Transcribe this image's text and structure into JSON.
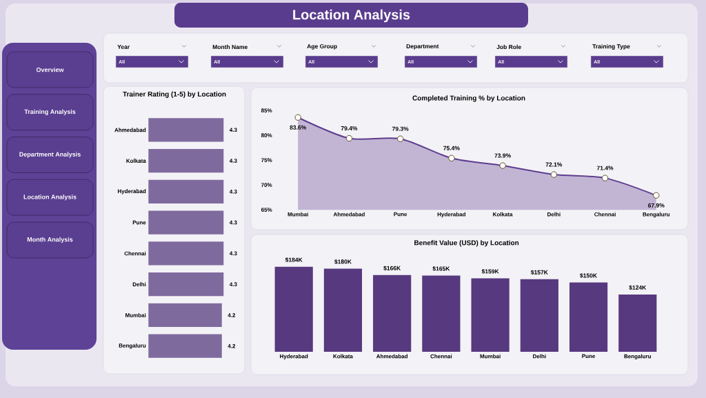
{
  "chart_data": [
    {
      "type": "other",
      "title": "Location Analysis",
      "annotations": [
        "Overview",
        "Training Analysis",
        "Department Analysis",
        "Location Analysis",
        "Month Analysis"
      ]
    },
    {
      "type": "other",
      "categories": [
        "Year",
        "Month Name",
        "Age Group",
        "Department",
        "Job Role",
        "Training Type"
      ],
      "annotations": [
        "All",
        "All",
        "All",
        "All",
        "All",
        "All"
      ]
    },
    {
      "type": "bar",
      "orientation": "horizontal",
      "title": "Trainer Rating (1-5) by Location",
      "categories": [
        "Ahmedabad",
        "Kolkata",
        "Hyderabad",
        "Pune",
        "Chennai",
        "Delhi",
        "Mumbai",
        "Bengaluru"
      ],
      "values": [
        4.3,
        4.3,
        4.3,
        4.3,
        4.3,
        4.3,
        4.2,
        4.2
      ],
      "color": "#7f6a9e",
      "data_labels": true
    },
    {
      "type": "area",
      "title": "Completed Training % by Location",
      "categories": [
        "Mumbai",
        "Ahmedabad",
        "Pune",
        "Hyderabad",
        "Kolkata",
        "Delhi",
        "Chennai",
        "Bengaluru"
      ],
      "values": [
        83.6,
        79.4,
        79.3,
        75.4,
        73.9,
        72.1,
        71.4,
        67.9
      ],
      "color": "#5e3d8f",
      "value_labels": [
        "83.6%",
        "79.4%",
        "79.3%",
        "75.4%",
        "73.9%",
        "72.1%",
        "71.4%",
        "67.9%"
      ],
      "ylim": [
        65,
        85
      ],
      "yticks": [
        {
          "value": 65,
          "label": "65%"
        },
        {
          "value": 70,
          "label": "70%"
        },
        {
          "value": 75,
          "label": "75%"
        },
        {
          "value": 80,
          "label": "80%"
        },
        {
          "value": 85,
          "label": "85%"
        }
      ],
      "marker": "circle"
    },
    {
      "type": "bar",
      "title": "Benefit Value (USD) by Location",
      "categories": [
        "Hyderabad",
        "Kolkata",
        "Ahmedabad",
        "Chennai",
        "Mumbai",
        "Delhi",
        "Pune",
        "Bengaluru"
      ],
      "values": [
        184,
        180,
        166,
        165,
        159,
        157,
        150,
        124
      ],
      "color": "#57397f",
      "value_labels": [
        "$184K",
        "$180K",
        "$166K",
        "$165K",
        "$159K",
        "$157K",
        "$150K",
        "$124K"
      ]
    }
  ]
}
